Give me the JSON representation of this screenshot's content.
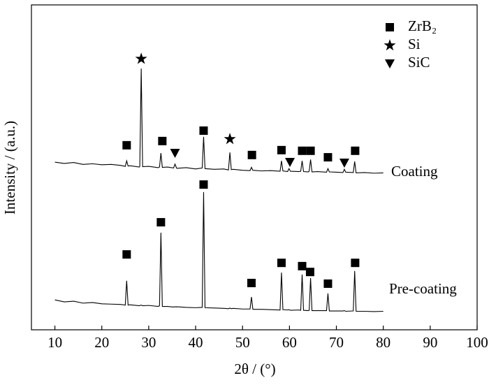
{
  "chart_data": {
    "type": "line",
    "xlabel": "2θ / (°)",
    "ylabel": "Intensity / (a.u.)",
    "xlim": [
      5,
      100
    ],
    "xticks": [
      10,
      20,
      30,
      40,
      50,
      60,
      70,
      80,
      90,
      100
    ],
    "ylim": [
      0,
      100
    ],
    "x": [
      10,
      12,
      14,
      16,
      18,
      20,
      22,
      24,
      25,
      25.3,
      25.6,
      26,
      28,
      28.1,
      28.4,
      28.7,
      30,
      32,
      32.3,
      32.6,
      32.9,
      34,
      35.3,
      35.6,
      35.9,
      36,
      38,
      40,
      41.4,
      41.7,
      42,
      44,
      46,
      47,
      47.3,
      47.6,
      48,
      50,
      51.6,
      51.9,
      52.2,
      54,
      56,
      58,
      58.3,
      58.6,
      59.6,
      59.9,
      60.2,
      62,
      62.4,
      62.7,
      63,
      64,
      64.2,
      64.5,
      64.8,
      66,
      67.9,
      68.2,
      68.5,
      70,
      71.4,
      71.7,
      72,
      73.6,
      73.9,
      74.2,
      76,
      78,
      80
    ],
    "series": [
      {
        "name": "Coating",
        "color": "#000000",
        "values": [
          51.6,
          51.2,
          51.5,
          50.9,
          51.1,
          50.8,
          50.9,
          50.6,
          50.3,
          52.0,
          50.4,
          50.5,
          50.1,
          50.3,
          80.4,
          50.2,
          50.3,
          49.9,
          50.1,
          54.4,
          50.0,
          50.1,
          49.8,
          51.0,
          49.9,
          49.7,
          49.9,
          49.5,
          49.8,
          59.4,
          49.6,
          49.4,
          49.5,
          49.2,
          54.6,
          49.3,
          49.4,
          49.1,
          49.0,
          50.0,
          49.1,
          48.9,
          49.0,
          48.8,
          52.0,
          48.9,
          48.7,
          49.6,
          48.8,
          48.7,
          48.8,
          52.0,
          48.7,
          48.6,
          48.8,
          52.4,
          48.6,
          48.7,
          48.5,
          49.6,
          48.6,
          48.5,
          48.4,
          49.4,
          48.5,
          48.4,
          51.8,
          48.3,
          48.4,
          48.2,
          48.3
        ]
      },
      {
        "name": "Pre-coating",
        "color": "#000000",
        "values": [
          9.2,
          8.6,
          8.8,
          8.2,
          8.4,
          8.0,
          7.9,
          7.8,
          7.6,
          15.1,
          7.6,
          7.7,
          7.4,
          7.5,
          7.6,
          7.4,
          7.5,
          7.2,
          7.4,
          29.9,
          7.2,
          7.2,
          7.0,
          7.1,
          7.0,
          7.1,
          6.9,
          6.8,
          6.9,
          42.4,
          6.8,
          6.7,
          6.6,
          6.5,
          6.7,
          6.5,
          6.6,
          6.4,
          6.4,
          10.1,
          6.3,
          6.3,
          6.2,
          6.1,
          17.6,
          6.2,
          6.1,
          6.2,
          6.0,
          6.1,
          6.0,
          17.0,
          6.0,
          5.9,
          6.0,
          15.9,
          5.9,
          5.9,
          5.9,
          11.2,
          5.8,
          5.8,
          5.8,
          5.9,
          5.7,
          5.8,
          18.1,
          5.7,
          5.7,
          5.6,
          5.7
        ]
      }
    ],
    "phases": [
      {
        "name": "ZrB₂",
        "marker": "square"
      },
      {
        "name": "Si",
        "marker": "star"
      },
      {
        "name": "SiC",
        "marker": "triangle-down"
      }
    ],
    "markers": [
      {
        "phase": 0,
        "x": 25.3,
        "y": 56.8
      },
      {
        "phase": 1,
        "x": 28.4,
        "y": 83.4
      },
      {
        "phase": 0,
        "x": 32.9,
        "y": 58.1
      },
      {
        "phase": 2,
        "x": 35.6,
        "y": 54.4
      },
      {
        "phase": 0,
        "x": 41.7,
        "y": 61.3
      },
      {
        "phase": 1,
        "x": 47.3,
        "y": 58.7
      },
      {
        "phase": 0,
        "x": 52,
        "y": 53.8
      },
      {
        "phase": 0,
        "x": 58.3,
        "y": 55.3
      },
      {
        "phase": 2,
        "x": 60.1,
        "y": 51.6
      },
      {
        "phase": 0,
        "x": 62.7,
        "y": 55.1
      },
      {
        "phase": 0,
        "x": 64.5,
        "y": 55.1
      },
      {
        "phase": 0,
        "x": 68.2,
        "y": 53.1
      },
      {
        "phase": 2,
        "x": 71.7,
        "y": 51.4
      },
      {
        "phase": 0,
        "x": 74,
        "y": 55.1
      },
      {
        "phase": 0,
        "x": 25.3,
        "y": 23.2
      },
      {
        "phase": 0,
        "x": 32.6,
        "y": 33.1
      },
      {
        "phase": 0,
        "x": 41.7,
        "y": 44.7
      },
      {
        "phase": 0,
        "x": 51.9,
        "y": 14.4
      },
      {
        "phase": 0,
        "x": 58.3,
        "y": 20.6
      },
      {
        "phase": 0,
        "x": 62.7,
        "y": 19.6
      },
      {
        "phase": 0,
        "x": 64.4,
        "y": 17.8
      },
      {
        "phase": 0,
        "x": 68.2,
        "y": 14.2
      },
      {
        "phase": 0,
        "x": 74,
        "y": 20.6
      }
    ]
  }
}
